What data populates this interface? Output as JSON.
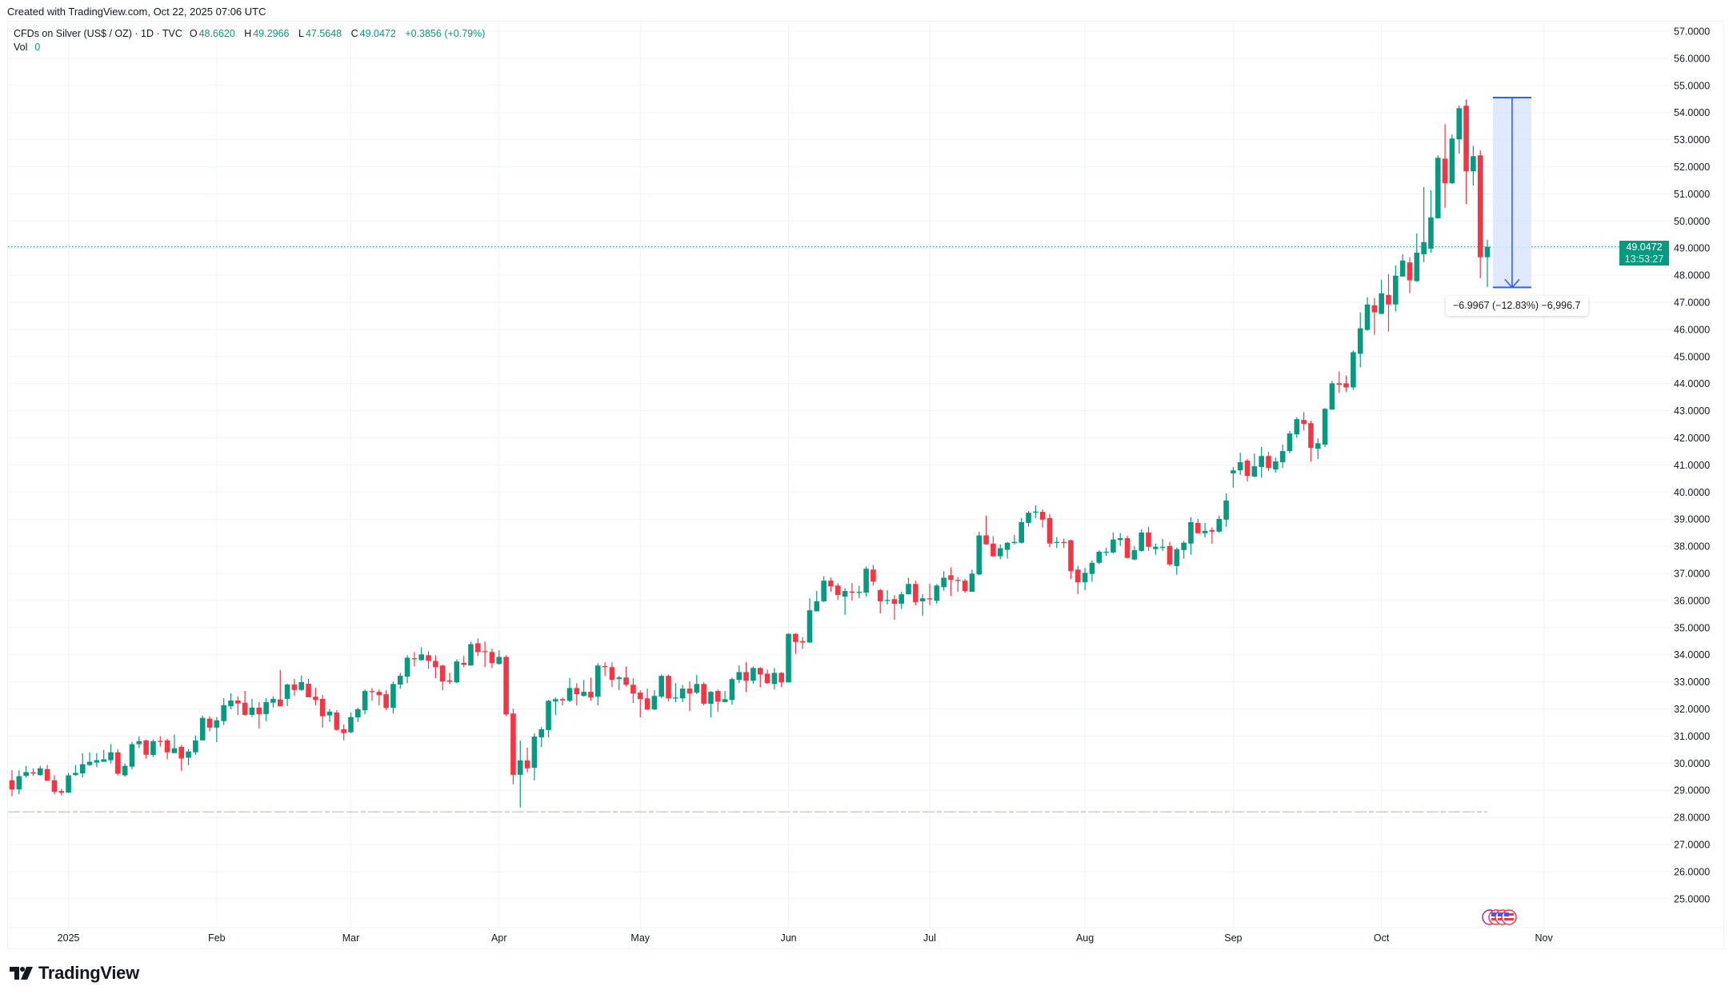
{
  "created_text": "Created with TradingView.com, Oct 22, 2025 07:06 UTC",
  "legend": {
    "symbol": "CFDs on Silver (US$ / OZ) · 1D · TVC",
    "o_label": "O",
    "o_value": "48.6620",
    "h_label": "H",
    "h_value": "49.2966",
    "l_label": "L",
    "l_value": "47.5648",
    "c_label": "C",
    "c_value": "49.0472",
    "change": "+0.3856 (+0.79%)",
    "vol_label": "Vol",
    "vol_value": "0"
  },
  "current_price": {
    "value": "49.0472",
    "countdown": "13:53:27"
  },
  "measure": {
    "label": "−6.9967 (−12.83%) −6,996.7"
  },
  "logo_text": "TradingView",
  "colors": {
    "up": "#089981",
    "down": "#F23645",
    "grid": "#f0f3fa",
    "measure": "#2962FF",
    "measure_fill": "#dbe5fd"
  },
  "events": [
    "purple-event-icon",
    "us-flag-icon",
    "us-flag-icon",
    "us-flag-icon"
  ],
  "chart_data": {
    "type": "candlestick",
    "title": "CFDs on Silver (US$ / OZ) · 1D · TVC",
    "ylim": [
      24.4,
      57.4
    ],
    "y_ticks": [
      "57.0000",
      "56.0000",
      "55.0000",
      "54.0000",
      "53.0000",
      "52.0000",
      "51.0000",
      "50.0000",
      "49.0000",
      "48.0000",
      "47.0000",
      "46.0000",
      "45.0000",
      "44.0000",
      "43.0000",
      "42.0000",
      "41.0000",
      "40.0000",
      "39.0000",
      "38.0000",
      "37.0000",
      "36.0000",
      "35.0000",
      "34.0000",
      "33.0000",
      "32.0000",
      "31.0000",
      "30.0000",
      "29.0000",
      "28.0000",
      "27.0000",
      "26.0000",
      "25.0000"
    ],
    "x_ticks": [
      {
        "label": "2025",
        "bar": 8
      },
      {
        "label": "Feb",
        "bar": 29
      },
      {
        "label": "Mar",
        "bar": 48
      },
      {
        "label": "Apr",
        "bar": 69
      },
      {
        "label": "May",
        "bar": 89
      },
      {
        "label": "Jun",
        "bar": 110
      },
      {
        "label": "Jul",
        "bar": 130
      },
      {
        "label": "Aug",
        "bar": 152
      },
      {
        "label": "Sep",
        "bar": 173
      },
      {
        "label": "Oct",
        "bar": 194
      },
      {
        "label": "Nov",
        "bar": 217
      }
    ],
    "last_price": 49.0472,
    "lowest_low_line": 28.2,
    "measure": {
      "from_bar": 210,
      "to_bar": 215,
      "start_price": 54.55,
      "end_price": 47.55
    },
    "ohlc": [
      [
        29.37,
        29.74,
        28.78,
        29.03
      ],
      [
        29.03,
        29.74,
        28.85,
        29.52
      ],
      [
        29.53,
        29.9,
        29.47,
        29.67
      ],
      [
        29.66,
        29.81,
        29.53,
        29.62
      ],
      [
        29.56,
        29.9,
        29.53,
        29.81
      ],
      [
        29.78,
        29.93,
        29.35,
        29.35
      ],
      [
        29.37,
        29.55,
        28.85,
        28.94
      ],
      [
        28.97,
        29.05,
        28.82,
        28.91
      ],
      [
        28.91,
        29.64,
        28.91,
        29.55
      ],
      [
        29.56,
        29.93,
        29.53,
        29.64
      ],
      [
        29.62,
        30.37,
        29.47,
        29.96
      ],
      [
        29.93,
        30.4,
        29.9,
        30.05
      ],
      [
        30.02,
        30.37,
        29.85,
        30.11
      ],
      [
        30.05,
        30.49,
        30.05,
        30.14
      ],
      [
        30.11,
        30.7,
        29.99,
        30.4
      ],
      [
        30.4,
        30.52,
        29.55,
        29.61
      ],
      [
        29.55,
        29.99,
        29.5,
        29.9
      ],
      [
        29.87,
        30.78,
        29.78,
        30.7
      ],
      [
        30.7,
        30.99,
        30.55,
        30.81
      ],
      [
        30.84,
        30.87,
        30.17,
        30.31
      ],
      [
        30.3,
        30.87,
        30.23,
        30.81
      ],
      [
        30.82,
        30.99,
        30.61,
        30.79
      ],
      [
        30.84,
        30.9,
        30.14,
        30.4
      ],
      [
        30.37,
        31.05,
        30.37,
        30.55
      ],
      [
        30.6,
        30.67,
        29.72,
        30.17
      ],
      [
        30.2,
        30.52,
        29.93,
        30.43
      ],
      [
        30.4,
        31.02,
        30.31,
        30.84
      ],
      [
        30.84,
        31.75,
        30.84,
        31.67
      ],
      [
        31.64,
        31.73,
        31.17,
        31.31
      ],
      [
        31.31,
        31.7,
        30.77,
        31.58
      ],
      [
        31.55,
        32.4,
        31.4,
        32.14
      ],
      [
        32.1,
        32.58,
        31.99,
        32.31
      ],
      [
        32.31,
        32.46,
        31.78,
        32.2
      ],
      [
        32.23,
        32.67,
        31.75,
        31.78
      ],
      [
        31.78,
        32.37,
        31.7,
        32.05
      ],
      [
        32.05,
        32.25,
        31.28,
        31.81
      ],
      [
        31.81,
        32.4,
        31.55,
        32.25
      ],
      [
        32.23,
        32.46,
        32.05,
        32.37
      ],
      [
        32.35,
        33.43,
        32.11,
        32.1
      ],
      [
        32.37,
        32.93,
        32.11,
        32.9
      ],
      [
        32.9,
        33.11,
        32.49,
        32.7
      ],
      [
        32.7,
        33.23,
        32.67,
        32.99
      ],
      [
        32.93,
        33.11,
        32.43,
        32.43
      ],
      [
        32.45,
        32.78,
        32.14,
        32.33
      ],
      [
        32.37,
        32.52,
        31.31,
        31.73
      ],
      [
        31.76,
        31.99,
        31.52,
        31.9
      ],
      [
        31.87,
        31.96,
        31.2,
        31.23
      ],
      [
        31.25,
        31.43,
        30.84,
        31.11
      ],
      [
        31.14,
        31.87,
        31.1,
        31.7
      ],
      [
        31.69,
        32.05,
        31.52,
        31.99
      ],
      [
        31.95,
        32.72,
        31.8,
        32.66
      ],
      [
        32.66,
        32.77,
        32.3,
        32.62
      ],
      [
        32.63,
        32.72,
        32.13,
        32.51
      ],
      [
        32.54,
        32.69,
        31.95,
        32.04
      ],
      [
        32.04,
        33.01,
        31.83,
        32.92
      ],
      [
        32.9,
        33.33,
        32.75,
        33.22
      ],
      [
        33.19,
        33.98,
        32.95,
        33.89
      ],
      [
        33.87,
        34.1,
        33.57,
        33.85
      ],
      [
        33.8,
        34.27,
        33.77,
        34.01
      ],
      [
        33.98,
        34.13,
        33.48,
        33.77
      ],
      [
        33.77,
        33.98,
        33.13,
        33.54
      ],
      [
        33.6,
        33.63,
        32.69,
        33.01
      ],
      [
        33.05,
        33.33,
        32.92,
        33.0
      ],
      [
        32.98,
        33.83,
        32.95,
        33.75
      ],
      [
        33.7,
        33.95,
        33.54,
        33.63
      ],
      [
        33.6,
        34.48,
        33.6,
        34.39
      ],
      [
        34.42,
        34.6,
        33.95,
        34.1
      ],
      [
        34.13,
        34.48,
        33.54,
        34.1
      ],
      [
        34.1,
        34.22,
        33.51,
        33.69
      ],
      [
        33.66,
        34.16,
        33.63,
        33.92
      ],
      [
        33.92,
        33.98,
        31.75,
        31.8
      ],
      [
        31.83,
        32.01,
        29.22,
        29.57
      ],
      [
        29.57,
        30.83,
        28.36,
        30.1
      ],
      [
        30.1,
        30.57,
        29.66,
        29.81
      ],
      [
        29.83,
        31.1,
        29.36,
        30.98
      ],
      [
        30.95,
        31.33,
        30.6,
        31.25
      ],
      [
        31.22,
        32.33,
        30.95,
        32.3
      ],
      [
        32.28,
        32.42,
        31.77,
        32.36
      ],
      [
        32.36,
        32.42,
        32.13,
        32.31
      ],
      [
        32.3,
        33.13,
        32.25,
        32.77
      ],
      [
        32.77,
        32.95,
        32.13,
        32.54
      ],
      [
        32.48,
        33.07,
        32.45,
        32.63
      ],
      [
        32.63,
        33.16,
        32.3,
        32.42
      ],
      [
        32.45,
        33.69,
        32.13,
        33.6
      ],
      [
        33.58,
        33.72,
        33.22,
        33.54
      ],
      [
        33.54,
        33.72,
        32.8,
        33.07
      ],
      [
        33.1,
        33.22,
        32.69,
        33.16
      ],
      [
        33.16,
        33.57,
        32.83,
        32.89
      ],
      [
        32.89,
        33.13,
        32.22,
        32.57
      ],
      [
        32.6,
        32.69,
        31.69,
        32.36
      ],
      [
        32.39,
        32.75,
        31.95,
        31.98
      ],
      [
        31.98,
        32.69,
        31.95,
        32.48
      ],
      [
        32.45,
        33.27,
        32.4,
        33.22
      ],
      [
        33.22,
        33.27,
        32.27,
        32.39
      ],
      [
        32.4,
        32.95,
        32.25,
        32.42
      ],
      [
        32.39,
        32.89,
        32.25,
        32.75
      ],
      [
        32.75,
        33.01,
        31.92,
        32.57
      ],
      [
        32.6,
        33.25,
        32.54,
        32.92
      ],
      [
        32.92,
        32.98,
        32.13,
        32.19
      ],
      [
        32.19,
        32.66,
        31.69,
        32.63
      ],
      [
        32.66,
        32.72,
        31.89,
        32.27
      ],
      [
        32.25,
        32.66,
        32.25,
        32.36
      ],
      [
        32.33,
        33.16,
        32.16,
        33.1
      ],
      [
        33.07,
        33.6,
        32.95,
        33.36
      ],
      [
        33.36,
        33.72,
        32.63,
        33.04
      ],
      [
        33.04,
        33.57,
        32.92,
        33.51
      ],
      [
        33.51,
        33.54,
        32.8,
        33.27
      ],
      [
        33.3,
        33.45,
        32.93,
        32.95
      ],
      [
        32.92,
        33.51,
        32.72,
        33.33
      ],
      [
        33.33,
        33.36,
        32.8,
        32.98
      ],
      [
        32.98,
        34.8,
        32.98,
        34.77
      ],
      [
        34.77,
        34.8,
        34.03,
        34.47
      ],
      [
        34.5,
        34.65,
        34.21,
        34.45
      ],
      [
        34.45,
        36.08,
        34.43,
        35.64
      ],
      [
        35.6,
        36.35,
        35.6,
        35.97
      ],
      [
        35.97,
        36.9,
        35.94,
        36.73
      ],
      [
        36.73,
        36.84,
        36.32,
        36.52
      ],
      [
        36.55,
        36.64,
        36.02,
        36.2
      ],
      [
        36.14,
        36.46,
        35.47,
        36.35
      ],
      [
        36.33,
        36.64,
        36.0,
        36.3
      ],
      [
        36.3,
        36.55,
        36.08,
        36.32
      ],
      [
        36.29,
        37.25,
        36.14,
        37.17
      ],
      [
        37.14,
        37.31,
        36.55,
        36.7
      ],
      [
        36.38,
        36.43,
        35.53,
        35.97
      ],
      [
        35.99,
        36.38,
        35.85,
        36.02
      ],
      [
        36.05,
        36.2,
        35.29,
        35.88
      ],
      [
        35.88,
        36.32,
        35.7,
        36.23
      ],
      [
        36.23,
        36.84,
        36.23,
        36.61
      ],
      [
        36.61,
        36.73,
        35.82,
        35.94
      ],
      [
        35.97,
        36.23,
        35.44,
        36.08
      ],
      [
        36.08,
        36.61,
        35.82,
        36.04
      ],
      [
        35.99,
        36.61,
        35.88,
        36.55
      ],
      [
        36.49,
        37.08,
        36.35,
        36.84
      ],
      [
        36.93,
        37.22,
        36.17,
        36.76
      ],
      [
        36.76,
        36.87,
        36.32,
        36.74
      ],
      [
        36.73,
        36.79,
        36.29,
        36.35
      ],
      [
        36.32,
        37.14,
        36.32,
        36.99
      ],
      [
        36.96,
        38.54,
        36.93,
        38.4
      ],
      [
        38.4,
        39.13,
        38.07,
        38.07
      ],
      [
        38.1,
        38.37,
        37.6,
        37.63
      ],
      [
        37.63,
        38.07,
        37.52,
        37.93
      ],
      [
        37.87,
        38.16,
        37.55,
        38.13
      ],
      [
        38.14,
        38.42,
        38.07,
        38.16
      ],
      [
        38.13,
        39.04,
        38.1,
        38.89
      ],
      [
        38.86,
        39.3,
        38.72,
        39.24
      ],
      [
        39.26,
        39.51,
        39.04,
        39.28
      ],
      [
        39.27,
        39.36,
        38.69,
        38.98
      ],
      [
        39.04,
        39.19,
        37.96,
        38.1
      ],
      [
        38.14,
        38.34,
        37.93,
        38.16
      ],
      [
        38.16,
        38.28,
        37.93,
        38.14
      ],
      [
        38.22,
        38.25,
        36.79,
        37.08
      ],
      [
        37.14,
        37.28,
        36.23,
        36.67
      ],
      [
        36.67,
        37.2,
        36.38,
        37.02
      ],
      [
        36.98,
        37.48,
        36.69,
        37.39
      ],
      [
        37.39,
        37.86,
        37.33,
        37.8
      ],
      [
        37.78,
        37.95,
        37.64,
        37.8
      ],
      [
        37.77,
        38.51,
        37.74,
        38.25
      ],
      [
        38.23,
        38.48,
        38.01,
        38.3
      ],
      [
        38.3,
        38.39,
        37.55,
        37.57
      ],
      [
        37.51,
        38.01,
        37.48,
        37.86
      ],
      [
        37.83,
        38.63,
        37.8,
        38.51
      ],
      [
        38.51,
        38.72,
        37.83,
        37.98
      ],
      [
        37.9,
        38.1,
        37.69,
        37.98
      ],
      [
        37.96,
        38.27,
        37.83,
        37.98
      ],
      [
        38.01,
        38.16,
        37.27,
        37.33
      ],
      [
        37.27,
        37.95,
        36.95,
        37.89
      ],
      [
        37.86,
        38.19,
        37.54,
        38.13
      ],
      [
        38.1,
        39.07,
        37.69,
        38.89
      ],
      [
        38.86,
        39.01,
        38.48,
        38.48
      ],
      [
        38.48,
        38.86,
        38.33,
        38.57
      ],
      [
        38.6,
        38.69,
        38.1,
        38.54
      ],
      [
        38.54,
        39.13,
        38.5,
        39.01
      ],
      [
        38.98,
        39.95,
        38.72,
        39.69
      ],
      [
        40.69,
        40.92,
        40.16,
        40.8
      ],
      [
        40.8,
        41.45,
        40.63,
        41.1
      ],
      [
        41.16,
        41.22,
        40.39,
        40.6
      ],
      [
        40.57,
        41.42,
        40.55,
        40.95
      ],
      [
        40.92,
        41.66,
        40.54,
        41.33
      ],
      [
        41.33,
        41.48,
        40.77,
        40.89
      ],
      [
        40.83,
        41.27,
        40.72,
        41.13
      ],
      [
        41.1,
        41.75,
        40.89,
        41.51
      ],
      [
        41.51,
        42.25,
        41.43,
        42.16
      ],
      [
        42.13,
        42.75,
        42.0,
        42.69
      ],
      [
        42.66,
        42.95,
        42.27,
        42.51
      ],
      [
        42.54,
        42.63,
        41.13,
        41.63
      ],
      [
        41.6,
        41.98,
        41.22,
        41.8
      ],
      [
        41.75,
        43.1,
        41.66,
        43.07
      ],
      [
        43.04,
        44.1,
        43.04,
        44.01
      ],
      [
        44.01,
        44.45,
        43.66,
        43.96
      ],
      [
        44.01,
        44.3,
        43.69,
        43.86
      ],
      [
        43.86,
        45.22,
        43.77,
        45.16
      ],
      [
        45.1,
        46.63,
        44.6,
        46.04
      ],
      [
        45.98,
        47.19,
        45.95,
        46.92
      ],
      [
        46.89,
        47.16,
        45.8,
        46.63
      ],
      [
        46.57,
        47.83,
        46.57,
        47.33
      ],
      [
        47.27,
        48.04,
        45.92,
        46.92
      ],
      [
        46.92,
        48.36,
        46.66,
        47.98
      ],
      [
        47.95,
        48.77,
        47.95,
        48.54
      ],
      [
        48.47,
        48.66,
        47.34,
        47.81
      ],
      [
        47.78,
        49.54,
        47.75,
        48.83
      ],
      [
        48.77,
        51.25,
        48.48,
        49.22
      ],
      [
        48.98,
        51.13,
        48.83,
        50.13
      ],
      [
        50.1,
        52.42,
        50.1,
        52.33
      ],
      [
        52.3,
        53.57,
        50.48,
        51.39
      ],
      [
        51.39,
        53.19,
        51.36,
        53.04
      ],
      [
        53.01,
        54.25,
        52.48,
        54.16
      ],
      [
        54.25,
        54.48,
        50.63,
        51.83
      ],
      [
        51.83,
        52.77,
        51.3,
        52.39
      ],
      [
        52.42,
        52.6,
        47.89,
        48.66
      ],
      [
        48.662,
        49.2966,
        47.5648,
        49.0472
      ]
    ]
  }
}
